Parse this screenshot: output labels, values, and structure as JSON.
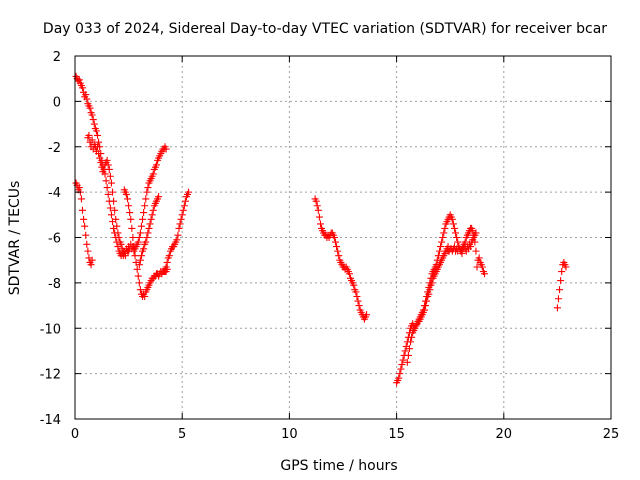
{
  "chart_data": {
    "type": "scatter",
    "title": "Day 033 of 2024, Sidereal Day-to-day VTEC variation (SDTVAR) for receiver bcar",
    "xlabel": "GPS time / hours",
    "ylabel": "SDTVAR / TECUs",
    "xlim": [
      0,
      25
    ],
    "ylim": [
      -14,
      2
    ],
    "xticks": [
      "0",
      "5",
      "10",
      "15",
      "20",
      "25"
    ],
    "xtick_values": [
      0,
      5,
      10,
      15,
      20,
      25
    ],
    "yticks": [
      "2",
      "0",
      "-2",
      "-4",
      "-6",
      "-8",
      "-10",
      "-12",
      "-14"
    ],
    "ytick_values": [
      2,
      0,
      -2,
      -4,
      -6,
      -8,
      -10,
      -12,
      -14
    ],
    "grid": true,
    "marker": "+",
    "marker_color": "#ff0000",
    "series": [
      {
        "name": "seg1",
        "x": [
          0.05,
          0.1,
          0.15,
          0.2,
          0.25,
          0.3,
          0.35,
          0.4,
          0.45,
          0.5,
          0.55,
          0.6,
          0.65,
          0.7,
          0.75,
          0.8
        ],
        "y": [
          -3.6,
          -3.7,
          -3.9,
          -3.8,
          -4.0,
          -4.3,
          -4.8,
          -5.2,
          -5.5,
          -5.9,
          -6.3,
          -6.6,
          -6.9,
          -7.1,
          -7.2,
          -7.0
        ]
      },
      {
        "name": "seg2",
        "x": [
          0.05,
          0.1,
          0.15,
          0.2,
          0.25,
          0.3,
          0.35,
          0.4,
          0.45,
          0.5,
          0.55,
          0.6,
          0.65,
          0.7,
          0.75,
          0.8,
          0.85,
          0.9,
          0.95,
          1.0,
          1.05,
          1.1,
          1.15,
          1.2,
          1.25,
          1.3,
          1.35,
          1.4,
          1.45,
          1.5,
          1.55,
          1.6,
          1.65,
          1.7,
          1.75,
          1.8,
          1.85,
          1.9,
          1.95,
          2.0,
          2.05,
          2.1,
          2.15,
          2.2,
          2.25,
          2.3,
          2.35,
          2.4,
          2.45,
          2.5
        ],
        "y": [
          1.1,
          1.0,
          0.9,
          0.95,
          0.8,
          0.7,
          0.6,
          0.4,
          0.2,
          0.3,
          0.1,
          -0.1,
          -0.2,
          -0.3,
          -0.5,
          -0.6,
          -0.8,
          -1.0,
          -1.2,
          -1.3,
          -1.5,
          -1.8,
          -2.0,
          -2.3,
          -2.6,
          -2.8,
          -3.0,
          -3.2,
          -3.5,
          -3.8,
          -4.1,
          -4.4,
          -4.7,
          -5.0,
          -5.3,
          -5.6,
          -5.8,
          -6.0,
          -6.2,
          -6.4,
          -6.6,
          -6.7,
          -6.8,
          -6.7,
          -6.8,
          -6.6,
          -6.7,
          -6.5,
          -6.6,
          -6.4
        ]
      },
      {
        "name": "seg3",
        "x": [
          0.6,
          0.65,
          0.7,
          0.75,
          0.8,
          0.85,
          0.9,
          0.95,
          1.0,
          1.05,
          1.1,
          1.15,
          1.2,
          1.25,
          1.3,
          1.35,
          1.4,
          1.45,
          1.5,
          1.55,
          1.6,
          1.65,
          1.7,
          1.75,
          1.8,
          1.85,
          1.9,
          1.95,
          2.0,
          2.05,
          2.1,
          2.15,
          2.2,
          2.25,
          2.3,
          2.35
        ],
        "y": [
          -1.6,
          -1.5,
          -1.8,
          -2.0,
          -1.7,
          -2.1,
          -1.9,
          -2.0,
          -2.2,
          -2.0,
          -2.3,
          -2.5,
          -2.7,
          -2.9,
          -3.1,
          -3.0,
          -2.8,
          -2.7,
          -2.6,
          -2.8,
          -3.0,
          -3.3,
          -3.6,
          -4.0,
          -4.4,
          -4.8,
          -5.2,
          -5.5,
          -5.8,
          -6.0,
          -6.2,
          -6.3,
          -6.5,
          -6.6,
          -6.7,
          -6.8
        ]
      },
      {
        "name": "seg4",
        "x": [
          2.3,
          2.35,
          2.4,
          2.45,
          2.5,
          2.55,
          2.6,
          2.65,
          2.7,
          2.75,
          2.8,
          2.85,
          2.9,
          2.95,
          3.0,
          3.05,
          3.1,
          3.15,
          3.2,
          3.25,
          3.3,
          3.35,
          3.4,
          3.45,
          3.5,
          3.55,
          3.6,
          3.65,
          3.7,
          3.75,
          3.8,
          3.85,
          3.9,
          3.95,
          4.0,
          4.05,
          4.1,
          4.15,
          4.2,
          4.25,
          4.3
        ],
        "y": [
          -3.9,
          -4.0,
          -4.1,
          -4.3,
          -4.6,
          -4.9,
          -5.2,
          -5.6,
          -6.0,
          -6.4,
          -6.8,
          -7.1,
          -7.4,
          -7.7,
          -8.0,
          -8.3,
          -8.5,
          -8.6,
          -8.5,
          -8.6,
          -8.4,
          -8.3,
          -8.2,
          -8.1,
          -8.0,
          -7.9,
          -7.8,
          -7.8,
          -7.7,
          -7.7,
          -7.6,
          -7.6,
          -7.7,
          -7.6,
          -7.5,
          -7.6,
          -7.5,
          -7.5,
          -7.4,
          -7.5,
          -7.4
        ]
      },
      {
        "name": "seg5",
        "x": [
          2.5,
          2.55,
          2.6,
          2.65,
          2.7,
          2.75,
          2.8,
          2.85,
          2.9,
          2.95,
          3.0,
          3.05,
          3.1,
          3.15,
          3.2,
          3.25,
          3.3,
          3.35,
          3.4,
          3.45,
          3.5,
          3.55,
          3.6,
          3.65,
          3.7,
          3.75,
          3.8,
          3.85,
          3.9,
          3.95,
          4.0,
          4.05,
          4.1,
          4.15,
          4.2,
          4.25
        ],
        "y": [
          -6.6,
          -6.5,
          -6.3,
          -6.5,
          -6.4,
          -6.6,
          -6.5,
          -6.4,
          -6.3,
          -6.2,
          -6.0,
          -5.8,
          -5.5,
          -5.2,
          -4.9,
          -4.6,
          -4.3,
          -4.0,
          -3.8,
          -3.6,
          -3.5,
          -3.4,
          -3.3,
          -3.2,
          -3.0,
          -2.9,
          -2.8,
          -2.6,
          -2.5,
          -2.4,
          -2.3,
          -2.2,
          -2.1,
          -2.1,
          -2.0,
          -2.1
        ]
      },
      {
        "name": "seg6",
        "x": [
          3.0,
          3.05,
          3.1,
          3.15,
          3.2,
          3.25,
          3.3,
          3.35,
          3.4,
          3.45,
          3.5,
          3.55,
          3.6,
          3.65,
          3.7,
          3.75,
          3.8,
          3.85,
          3.9
        ],
        "y": [
          -7.2,
          -7.0,
          -6.8,
          -6.6,
          -6.5,
          -6.3,
          -6.2,
          -6.0,
          -5.8,
          -5.6,
          -5.4,
          -5.2,
          -5.0,
          -4.8,
          -4.6,
          -4.5,
          -4.4,
          -4.3,
          -4.2
        ]
      },
      {
        "name": "seg7",
        "x": [
          4.2,
          4.25,
          4.3,
          4.35,
          4.4,
          4.45,
          4.5,
          4.55,
          4.6,
          4.65,
          4.7,
          4.75,
          4.8,
          4.85,
          4.9,
          4.95,
          5.0,
          5.05,
          5.1,
          5.15,
          5.2,
          5.25,
          5.3
        ],
        "y": [
          -7.5,
          -7.3,
          -7.1,
          -6.9,
          -6.8,
          -6.6,
          -6.5,
          -6.4,
          -6.4,
          -6.3,
          -6.2,
          -6.1,
          -5.9,
          -5.6,
          -5.4,
          -5.2,
          -5.0,
          -4.8,
          -4.6,
          -4.4,
          -4.2,
          -4.1,
          -4.0
        ]
      },
      {
        "name": "seg8",
        "x": [
          11.2,
          11.25,
          11.3,
          11.35,
          11.4,
          11.45,
          11.5,
          11.55,
          11.6,
          11.65,
          11.7,
          11.75,
          11.8,
          11.85,
          11.9,
          11.95,
          12.0,
          12.05,
          12.1,
          12.15,
          12.2,
          12.25,
          12.3,
          12.35,
          12.4,
          12.45,
          12.5,
          12.55,
          12.6,
          12.65,
          12.7,
          12.75,
          12.8,
          12.85,
          12.9,
          12.95,
          13.0,
          13.05,
          13.1,
          13.15,
          13.2,
          13.25,
          13.3,
          13.35,
          13.4,
          13.45,
          13.5,
          13.55,
          13.6
        ],
        "y": [
          -4.3,
          -4.4,
          -4.6,
          -4.8,
          -5.1,
          -5.4,
          -5.6,
          -5.7,
          -5.8,
          -5.9,
          -5.9,
          -6.0,
          -5.9,
          -6.0,
          -5.9,
          -5.8,
          -5.8,
          -5.9,
          -6.0,
          -6.2,
          -6.4,
          -6.6,
          -6.8,
          -7.0,
          -7.1,
          -7.2,
          -7.3,
          -7.3,
          -7.4,
          -7.3,
          -7.4,
          -7.5,
          -7.6,
          -7.8,
          -7.9,
          -8.0,
          -8.1,
          -8.3,
          -8.4,
          -8.6,
          -8.8,
          -9.0,
          -9.2,
          -9.3,
          -9.4,
          -9.5,
          -9.6,
          -9.5,
          -9.4
        ]
      },
      {
        "name": "seg9",
        "x": [
          15.0,
          15.05,
          15.1,
          15.15,
          15.2,
          15.25,
          15.3,
          15.35,
          15.4,
          15.45,
          15.5,
          15.55,
          15.6,
          15.65,
          15.7,
          15.75,
          15.8,
          15.85,
          15.9,
          15.95,
          16.0,
          16.05,
          16.1,
          16.15,
          16.2,
          16.25,
          16.3,
          16.35,
          16.4,
          16.45,
          16.5,
          16.55,
          16.6,
          16.65,
          16.7,
          16.75,
          16.8,
          16.85,
          16.9,
          16.95,
          17.0,
          17.05,
          17.1,
          17.15,
          17.2,
          17.25,
          17.3,
          17.35,
          17.4,
          17.45,
          17.5,
          17.55,
          17.6,
          17.65,
          17.7,
          17.75,
          17.8,
          17.85,
          17.9,
          17.95,
          18.0,
          18.05,
          18.1,
          18.15,
          18.2,
          18.25,
          18.3,
          18.35,
          18.4,
          18.45,
          18.5,
          18.55,
          18.6,
          18.65,
          18.7
        ],
        "y": [
          -12.4,
          -12.3,
          -12.2,
          -12.0,
          -11.8,
          -11.6,
          -11.4,
          -11.2,
          -11.0,
          -10.8,
          -10.6,
          -10.4,
          -10.2,
          -10.0,
          -9.9,
          -9.8,
          -9.9,
          -10.0,
          -9.9,
          -9.8,
          -9.7,
          -9.6,
          -9.5,
          -9.4,
          -9.3,
          -9.2,
          -9.0,
          -8.8,
          -8.6,
          -8.4,
          -8.2,
          -8.0,
          -7.8,
          -7.6,
          -7.5,
          -7.4,
          -7.3,
          -7.2,
          -7.0,
          -6.8,
          -6.6,
          -6.4,
          -6.2,
          -6.0,
          -5.8,
          -5.6,
          -5.4,
          -5.3,
          -5.2,
          -5.1,
          -5.0,
          -5.1,
          -5.2,
          -5.4,
          -5.6,
          -5.8,
          -6.0,
          -6.2,
          -6.4,
          -6.5,
          -6.6,
          -6.5,
          -6.4,
          -6.3,
          -6.2,
          -6.0,
          -5.9,
          -5.8,
          -5.7,
          -5.6,
          -5.6,
          -5.7,
          -5.9,
          -6.2,
          -6.6
        ]
      },
      {
        "name": "seg10",
        "x": [
          15.5,
          15.55,
          15.6,
          15.65,
          15.7,
          15.75,
          15.8,
          15.85,
          15.9,
          15.95,
          16.0,
          16.05,
          16.1,
          16.15,
          16.2,
          16.25,
          16.3,
          16.35,
          16.4,
          16.45,
          16.5,
          16.55,
          16.6,
          16.65,
          16.7,
          16.75,
          16.8,
          16.85,
          16.9,
          16.95,
          17.0,
          17.05,
          17.1,
          17.15,
          17.2,
          17.25,
          17.3,
          17.35,
          17.4
        ],
        "y": [
          -11.5,
          -11.2,
          -10.9,
          -10.6,
          -10.4,
          -10.2,
          -10.1,
          -10.0,
          -9.9,
          -9.8,
          -9.7,
          -9.7,
          -9.6,
          -9.5,
          -9.4,
          -9.3,
          -9.2,
          -9.0,
          -8.8,
          -8.6,
          -8.5,
          -8.3,
          -8.1,
          -8.0,
          -7.8,
          -7.7,
          -7.6,
          -7.5,
          -7.4,
          -7.3,
          -7.2,
          -7.1,
          -7.0,
          -6.9,
          -6.8,
          -6.7,
          -6.6,
          -6.5,
          -6.4
        ]
      },
      {
        "name": "seg11",
        "x": [
          17.4,
          17.45,
          17.5,
          17.55,
          17.6,
          17.65,
          17.7,
          17.75,
          17.8,
          17.85,
          17.9,
          17.95,
          18.0,
          18.05,
          18.1,
          18.15,
          18.2,
          18.25,
          18.3,
          18.35,
          18.4,
          18.45,
          18.5,
          18.55,
          18.6,
          18.65,
          18.7
        ],
        "y": [
          -6.6,
          -6.6,
          -6.5,
          -6.5,
          -6.6,
          -6.5,
          -6.4,
          -6.6,
          -6.5,
          -6.6,
          -6.4,
          -6.5,
          -6.6,
          -6.7,
          -6.5,
          -6.4,
          -6.5,
          -6.6,
          -6.4,
          -6.5,
          -6.3,
          -6.4,
          -6.2,
          -6.1,
          -6.0,
          -5.9,
          -5.8
        ]
      },
      {
        "name": "seg12",
        "x": [
          18.75,
          18.8,
          18.85,
          18.9,
          18.95,
          19.0,
          19.05,
          19.1
        ],
        "y": [
          -7.3,
          -7.0,
          -6.9,
          -7.1,
          -7.2,
          -7.3,
          -7.5,
          -7.6
        ]
      },
      {
        "name": "seg13",
        "x": [
          22.5,
          22.55,
          22.6,
          22.65,
          22.7,
          22.75,
          22.8,
          22.85,
          22.9
        ],
        "y": [
          -9.1,
          -8.7,
          -8.3,
          -7.9,
          -7.5,
          -7.2,
          -7.1,
          -7.2,
          -7.3
        ]
      }
    ]
  }
}
